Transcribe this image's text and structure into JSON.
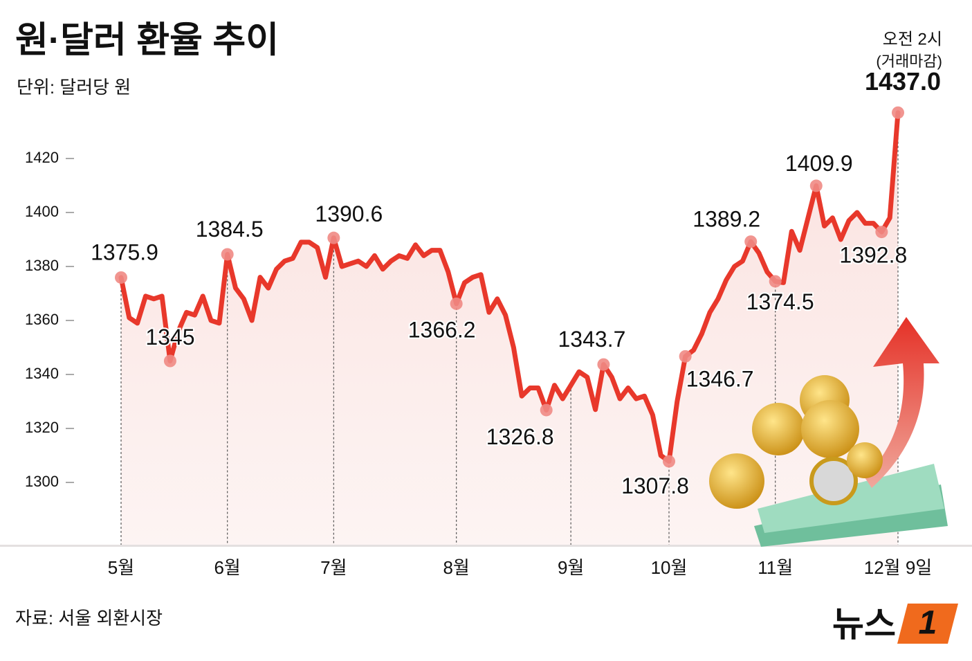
{
  "chart_data": {
    "type": "line",
    "title": "원·달러 환율 추이",
    "subtitle": "단위: 달러당 원",
    "note": [
      "오전 2시",
      "(거래마감)"
    ],
    "source": "자료: 서울 외환시장",
    "logo": {
      "text": "뉴스",
      "badge": "1"
    },
    "color": "#e8382b",
    "ylim": [
      1280,
      1440
    ],
    "yticks": [
      1300,
      1320,
      1340,
      1360,
      1380,
      1400,
      1420
    ],
    "categories": [
      "5월",
      null,
      null,
      null,
      null,
      null,
      null,
      null,
      null,
      null,
      null,
      null,
      null,
      "6월",
      null,
      null,
      null,
      null,
      null,
      null,
      null,
      null,
      null,
      null,
      null,
      null,
      "7월",
      null,
      null,
      null,
      null,
      null,
      null,
      null,
      null,
      null,
      null,
      null,
      null,
      null,
      null,
      "8월",
      null,
      null,
      null,
      null,
      null,
      null,
      null,
      null,
      null,
      null,
      null,
      null,
      null,
      "9월",
      null,
      null,
      null,
      null,
      null,
      null,
      null,
      null,
      null,
      null,
      null,
      "10월",
      null,
      null,
      null,
      null,
      null,
      null,
      null,
      null,
      null,
      null,
      null,
      null,
      "11월",
      null,
      null,
      null,
      null,
      null,
      null,
      null,
      null,
      null,
      null,
      null,
      null,
      null,
      null,
      "12월 9일"
    ],
    "values": [
      1375.9,
      1361,
      1359,
      1369,
      1368,
      1369,
      1345,
      1356,
      1363,
      1362,
      1369,
      1360,
      1359,
      1384.5,
      1372,
      1368,
      1360,
      1376,
      1372,
      1379,
      1382,
      1383,
      1389,
      1389,
      1387,
      1376,
      1390.6,
      1380,
      1381,
      1382,
      1380,
      1384,
      1379,
      1382,
      1384,
      1383,
      1388,
      1384,
      1386,
      1386,
      1378,
      1366.2,
      1374,
      1376,
      1377,
      1363,
      1368,
      1362,
      1350,
      1332,
      1335,
      1335,
      1326.8,
      1336,
      1331,
      1336,
      1341,
      1339,
      1327,
      1343.7,
      1339,
      1331,
      1335,
      1331,
      1332,
      1325,
      1310,
      1307.8,
      1330,
      1346.7,
      1349,
      1355,
      1363,
      1368,
      1375,
      1380,
      1382,
      1389.2,
      1385,
      1378,
      1374.5,
      1374,
      1393,
      1386,
      1398,
      1409.9,
      1395,
      1398,
      1390,
      1397,
      1400,
      1396,
      1396,
      1392.8,
      1398,
      1437
    ],
    "value_labels": [
      "1375.9",
      null,
      null,
      null,
      null,
      null,
      "1345",
      null,
      null,
      null,
      null,
      null,
      null,
      "1384.5",
      null,
      null,
      null,
      null,
      null,
      null,
      null,
      null,
      null,
      null,
      null,
      null,
      "1390.6",
      null,
      null,
      null,
      null,
      null,
      null,
      null,
      null,
      null,
      null,
      null,
      null,
      null,
      null,
      "1366.2",
      null,
      null,
      null,
      null,
      null,
      null,
      null,
      null,
      null,
      null,
      "1326.8",
      null,
      null,
      null,
      null,
      null,
      null,
      "1343.7",
      null,
      null,
      null,
      null,
      null,
      null,
      null,
      "1307.8",
      null,
      "1346.7",
      null,
      null,
      null,
      null,
      null,
      null,
      null,
      "1389.2",
      null,
      null,
      "1374.5",
      null,
      null,
      null,
      null,
      "1409.9",
      null,
      null,
      null,
      null,
      null,
      null,
      null,
      "1392.8",
      null,
      "1437.0"
    ]
  }
}
